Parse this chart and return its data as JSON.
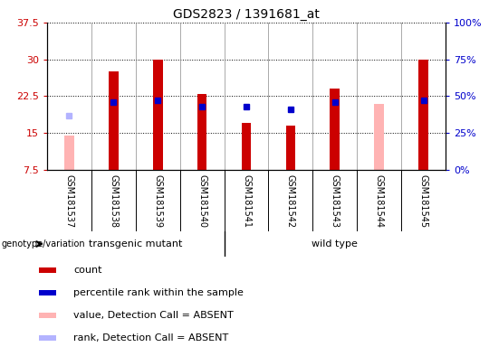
{
  "title": "GDS2823 / 1391681_at",
  "samples": [
    "GSM181537",
    "GSM181538",
    "GSM181539",
    "GSM181540",
    "GSM181541",
    "GSM181542",
    "GSM181543",
    "GSM181544",
    "GSM181545"
  ],
  "count_values": [
    null,
    27.5,
    30.0,
    23.0,
    17.0,
    16.5,
    24.0,
    null,
    30.0
  ],
  "rank_pct": [
    null,
    46,
    47,
    43,
    43,
    41,
    46,
    null,
    47
  ],
  "absent_value": [
    14.5,
    null,
    null,
    null,
    null,
    null,
    null,
    21.0,
    null
  ],
  "absent_rank_pct": [
    37,
    null,
    null,
    null,
    null,
    null,
    null,
    null,
    null
  ],
  "ylim_left": [
    7.5,
    37.5
  ],
  "ylim_right": [
    0,
    100
  ],
  "left_ticks": [
    7.5,
    15.0,
    22.5,
    30.0,
    37.5
  ],
  "right_ticks": [
    0,
    25,
    50,
    75,
    100
  ],
  "left_tick_labels": [
    "7.5",
    "15",
    "22.5",
    "30",
    "37.5"
  ],
  "right_tick_labels": [
    "0%",
    "25%",
    "50%",
    "75%",
    "100%"
  ],
  "group1_label": "transgenic mutant",
  "group2_label": "wild type",
  "group1_indices": [
    0,
    1,
    2,
    3
  ],
  "group2_indices": [
    4,
    5,
    6,
    7,
    8
  ],
  "color_count": "#cc0000",
  "color_rank": "#0000cc",
  "color_absent_value": "#ffb3b3",
  "color_absent_rank": "#b3b3ff",
  "bar_width": 0.55,
  "legend_items": [
    {
      "color": "#cc0000",
      "label": "count",
      "marker": "square"
    },
    {
      "color": "#0000cc",
      "label": "percentile rank within the sample",
      "marker": "square"
    },
    {
      "color": "#ffb3b3",
      "label": "value, Detection Call = ABSENT",
      "marker": "square"
    },
    {
      "color": "#b3b3ff",
      "label": "rank, Detection Call = ABSENT",
      "marker": "square"
    }
  ],
  "xlabel_genotype": "genotype/variation",
  "group_color": "#66ee66",
  "sample_bg": "#d0d0d0",
  "base_value": 7.5,
  "fig_width": 5.4,
  "fig_height": 3.84
}
